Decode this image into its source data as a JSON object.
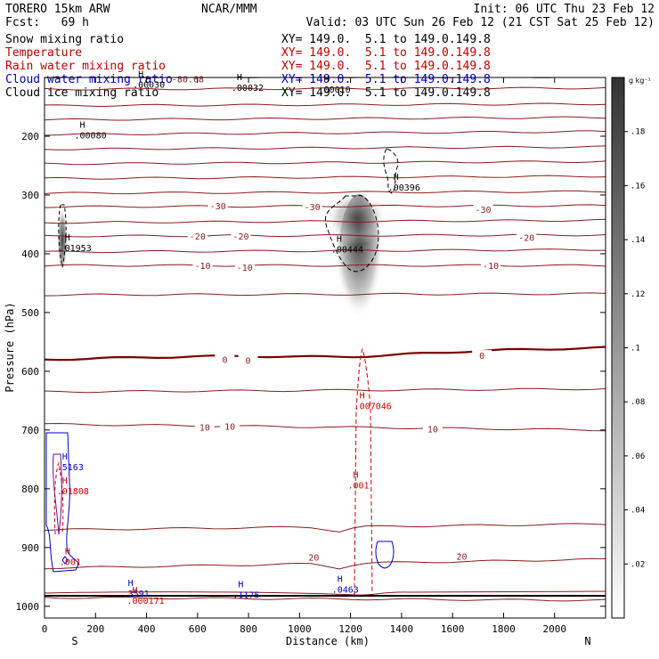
{
  "header": {
    "model": "TORERO  15km ARW",
    "center": "NCAR/MMM",
    "init": "Init: 06 UTC Thu 23 Feb 12",
    "fcst": "Fcst:   69 h",
    "valid": "Valid: 03 UTC Sun 26 Feb 12 (21 CST Sat 25 Feb 12)"
  },
  "legend": [
    {
      "label": "Snow mixing ratio",
      "color": "#000000",
      "xy": "XY= 149.0.  5.1 to 149.0.149.8"
    },
    {
      "label": "Temperature",
      "color": "#c00000",
      "xy": "XY= 149.0.  5.1 to 149.0.149.8"
    },
    {
      "label": "Rain water mixing ratio",
      "color": "#c00000",
      "xy": "XY= 149.0.  5.1 to 149.0.149.8"
    },
    {
      "label": "Cloud water mixing ratio",
      "color": "#0000c0",
      "xy": "XY= 149.0.  5.1 to 149.0.149.8"
    },
    {
      "label": "Cloud ice mixing ratio",
      "color": "#000000",
      "xy": "XY= 149.0.  5.1 to 149.0.149.8"
    }
  ],
  "colors": {
    "temperature": "#8b1a1a",
    "freezing": "#7a0000",
    "rain": "#d00000",
    "cloud_water": "#0000c8",
    "snow": "#000000",
    "ground": "#000000"
  },
  "chart_data": {
    "type": "cross-section",
    "xlabel": "Distance (km)",
    "ylabel": "Pressure (hPa)",
    "xlim": [
      0,
      2200
    ],
    "ylim": [
      100,
      1020
    ],
    "x_ticks": [
      0,
      200,
      400,
      600,
      800,
      1000,
      1200,
      1400,
      1600,
      1800,
      2000
    ],
    "y_ticks": [
      200,
      300,
      400,
      500,
      600,
      700,
      800,
      900,
      1000
    ],
    "x_end_labels": {
      "left": "S",
      "right": "N"
    },
    "colorbar": {
      "unit": "g kg⁻¹",
      "ticks": [
        ".02",
        ".04",
        ".06",
        ".08",
        ".1",
        ".12",
        ".14",
        ".16",
        ".18"
      ],
      "tick_values": [
        0.02,
        0.04,
        0.06,
        0.08,
        0.1,
        0.12,
        0.14,
        0.16,
        0.18
      ],
      "max": 0.2
    },
    "temperature_contours": [
      {
        "level": -80.68,
        "label": "-80.68",
        "p_left": 99,
        "p_right": 99,
        "label_x": 80
      },
      {
        "level": -70,
        "p_left": 120,
        "p_right": 118
      },
      {
        "level": -65,
        "p_left": 148,
        "p_right": 145
      },
      {
        "level": -60,
        "p_left": 172,
        "p_right": 168
      },
      {
        "level": -55,
        "p_left": 197,
        "p_right": 192
      },
      {
        "level": -50,
        "p_left": 222,
        "p_right": 218
      },
      {
        "level": -45,
        "p_left": 247,
        "p_right": 243
      },
      {
        "level": -40,
        "p_left": 272,
        "p_right": 268
      },
      {
        "level": -35,
        "p_left": 297,
        "p_right": 294
      },
      {
        "level": -30,
        "label": "-30",
        "p_left": 320,
        "p_right": 318,
        "label_x": 700
      },
      {
        "level": -25,
        "p_left": 347,
        "p_right": 343
      },
      {
        "level": -20,
        "label": "-20",
        "p_left": 370,
        "p_right": 368,
        "label_x": 680
      },
      {
        "level": -15,
        "p_left": 397,
        "p_right": 393
      },
      {
        "level": -10,
        "label": "-10",
        "p_left": 420,
        "p_right": 420,
        "label_x": 720
      },
      {
        "level": -5,
        "p_left": 470,
        "p_right": 468
      },
      {
        "level": 0,
        "label": "0",
        "p_left": 580,
        "p_right": 560,
        "label_x": 780
      },
      {
        "level": 5,
        "p_left": 635,
        "p_right": 630
      },
      {
        "level": 10,
        "label": "10",
        "p_left": 690,
        "p_right": 700,
        "label_x": 700
      },
      {
        "level": 15,
        "p_left": 870,
        "p_right": 860
      },
      {
        "level": 20,
        "label": "20",
        "p_left": 935,
        "p_right": 920,
        "label_x": 440
      },
      {
        "level": 25,
        "p_left": 985,
        "p_right": 990
      }
    ],
    "temperature_labels": [
      {
        "text": "-30",
        "x": 680,
        "p": 318
      },
      {
        "text": "-30",
        "x": 1050,
        "p": 320
      },
      {
        "text": "-30",
        "x": 1720,
        "p": 324
      },
      {
        "text": "-20",
        "x": 600,
        "p": 370
      },
      {
        "text": "-20",
        "x": 770,
        "p": 370
      },
      {
        "text": "-20",
        "x": 1890,
        "p": 372
      },
      {
        "text": "-10",
        "x": 620,
        "p": 420
      },
      {
        "text": "-10",
        "x": 785,
        "p": 423
      },
      {
        "text": "-10",
        "x": 1750,
        "p": 420
      },
      {
        "text": "0",
        "x": 707,
        "p": 580
      },
      {
        "text": "0",
        "x": 798,
        "p": 581
      },
      {
        "text": "0",
        "x": 1715,
        "p": 573
      },
      {
        "text": "10",
        "x": 628,
        "p": 695
      },
      {
        "text": "10",
        "x": 727,
        "p": 693
      },
      {
        "text": "10",
        "x": 1522,
        "p": 698
      },
      {
        "text": "20",
        "x": 1056,
        "p": 916
      },
      {
        "text": "20",
        "x": 1636,
        "p": 915
      }
    ],
    "maxima_labels": [
      {
        "text": ".00080",
        "x": 117,
        "p": 199,
        "color": "#000000"
      },
      {
        "text": ".00030",
        "x": 346,
        "p": 113,
        "color": "#000000"
      },
      {
        "text": ".00032",
        "x": 733,
        "p": 118,
        "color": "#000000"
      },
      {
        "text": ".00010",
        "x": 1074,
        "p": 121,
        "color": "#000000"
      },
      {
        "text": ".00396",
        "x": 1347,
        "p": 288,
        "color": "#000000"
      },
      {
        "text": ".01953",
        "x": 58,
        "p": 391,
        "color": "#000000"
      },
      {
        "text": ".00444",
        "x": 1124,
        "p": 393,
        "color": "#000000"
      },
      {
        "text": ".007046",
        "x": 1214,
        "p": 660,
        "color": "#d00000"
      },
      {
        "text": ".5163",
        "x": 48,
        "p": 764,
        "color": "#0000c8"
      },
      {
        "text": ".01808",
        "x": 48,
        "p": 805,
        "color": "#d00000"
      },
      {
        "text": ".001",
        "x": 1189,
        "p": 795,
        "color": "#d00000"
      },
      {
        "text": ".001",
        "x": 59,
        "p": 925,
        "color": "#d00000"
      },
      {
        "text": ".3591",
        "x": 306,
        "p": 979,
        "color": "#0000c8"
      },
      {
        "text": ".000171",
        "x": 323,
        "p": 991,
        "color": "#d00000"
      },
      {
        "text": ".1175",
        "x": 738,
        "p": 981,
        "color": "#0000c8"
      },
      {
        "text": ".0463",
        "x": 1127,
        "p": 972,
        "color": "#0000c8"
      }
    ]
  }
}
